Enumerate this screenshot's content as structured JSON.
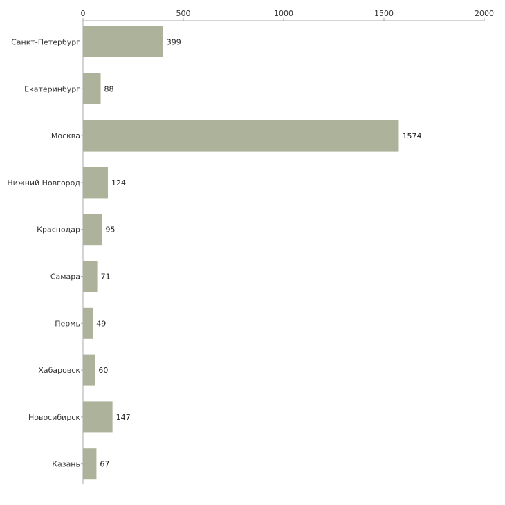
{
  "chart_data": {
    "type": "bar",
    "orientation": "horizontal",
    "title": "",
    "xlabel": "",
    "ylabel": "",
    "xlim": [
      0,
      2000
    ],
    "x_ticks": [
      0,
      500,
      1000,
      1500,
      2000
    ],
    "x_tick_labels": [
      "0",
      "500",
      "1000",
      "1500",
      "2000"
    ],
    "grid": false,
    "bar_color": "#adb29a",
    "categories": [
      "Санкт-Петербург",
      "Екатеринбург",
      "Москва",
      "Нижний Новгород",
      "Краснодар",
      "Самара",
      "Пермь",
      "Хабаровск",
      "Новосибирск",
      "Казань"
    ],
    "values": [
      399,
      88,
      1574,
      124,
      95,
      71,
      49,
      60,
      147,
      67
    ],
    "value_labels": [
      "399",
      "88",
      "1574",
      "124",
      "95",
      "71",
      "49",
      "60",
      "147",
      "67"
    ]
  }
}
